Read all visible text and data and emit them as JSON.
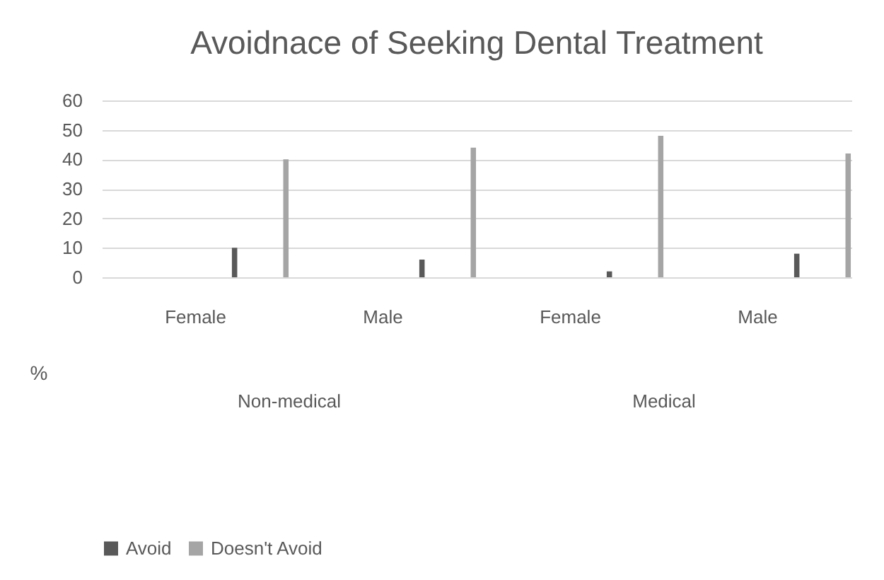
{
  "chart_data": {
    "type": "bar",
    "title": "Avoidnace of Seeking Dental Treatment",
    "ylabel": "%",
    "categories": [
      "Female",
      "Male",
      "Female",
      "Male"
    ],
    "annotations": [
      "Non-medical",
      "Medical"
    ],
    "series": [
      {
        "name": "Avoid",
        "color": "#595959",
        "values": [
          10,
          6,
          2,
          8
        ]
      },
      {
        "name": "Doesn't Avoid",
        "color": "#a5a5a5",
        "values": [
          40,
          44,
          48,
          42
        ]
      }
    ],
    "ylim": [
      0,
      60
    ],
    "yticks": [
      0,
      10,
      20,
      30,
      40,
      50,
      60
    ],
    "grid": "y",
    "legend": "bottom"
  }
}
